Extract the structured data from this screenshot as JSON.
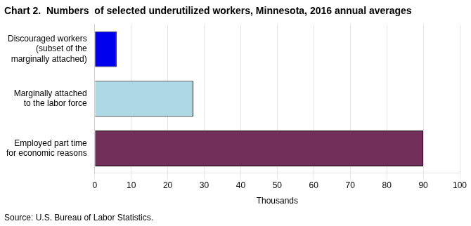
{
  "chart_data": {
    "type": "bar",
    "orientation": "horizontal",
    "title": "Chart 2.  Numbers  of selected underutilized workers, Minnesota, 2016 annual averages",
    "source": "Source: U.S. Bureau of Labor Statistics.",
    "categories": [
      "Employed part time\nfor economic reasons",
      "Marginally attached\nto the labor force",
      "Discouraged workers\n(subset of the\nmarginally attached)"
    ],
    "values": [
      90,
      27,
      6
    ],
    "colors": [
      "#722F5A",
      "#ADD8E6",
      "#0000EE"
    ],
    "xlabel": "Thousands",
    "xlim": [
      0,
      100
    ],
    "xticks": [
      0,
      10,
      20,
      30,
      40,
      50,
      60,
      70,
      80,
      90,
      100
    ],
    "grid": true
  }
}
